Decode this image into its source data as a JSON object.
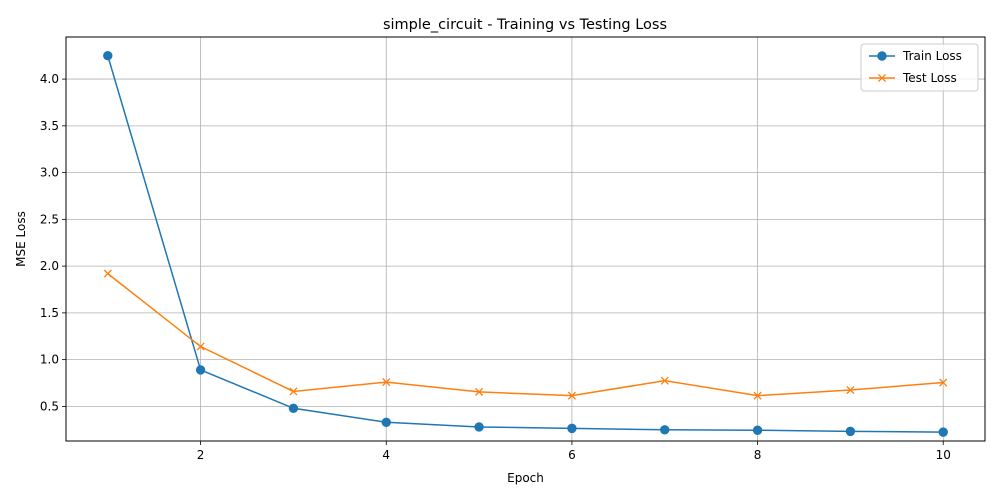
{
  "chart_data": {
    "type": "line",
    "title": "simple_circuit - Training vs Testing Loss",
    "xlabel": "Epoch",
    "ylabel": "MSE Loss",
    "x": [
      1,
      2,
      3,
      4,
      5,
      6,
      7,
      8,
      9,
      10
    ],
    "xlim": [
      0.55,
      10.45
    ],
    "ylim": [
      0.13,
      4.45
    ],
    "xticks": [
      2,
      4,
      6,
      8,
      10
    ],
    "yticks": [
      0.5,
      1.0,
      1.5,
      2.0,
      2.5,
      3.0,
      3.5,
      4.0
    ],
    "ytick_labels": [
      "0.5",
      "1.0",
      "1.5",
      "2.0",
      "2.5",
      "3.0",
      "3.5",
      "4.0"
    ],
    "grid": true,
    "legend_position": "top-right",
    "series": [
      {
        "name": "Train Loss",
        "color": "#1f77b4",
        "marker": "circle",
        "values": [
          4.25,
          0.89,
          0.48,
          0.33,
          0.28,
          0.265,
          0.25,
          0.245,
          0.233,
          0.225
        ]
      },
      {
        "name": "Test Loss",
        "color": "#ff7f0e",
        "marker": "x",
        "values": [
          1.92,
          1.14,
          0.66,
          0.76,
          0.655,
          0.615,
          0.775,
          0.615,
          0.675,
          0.755
        ]
      }
    ]
  }
}
